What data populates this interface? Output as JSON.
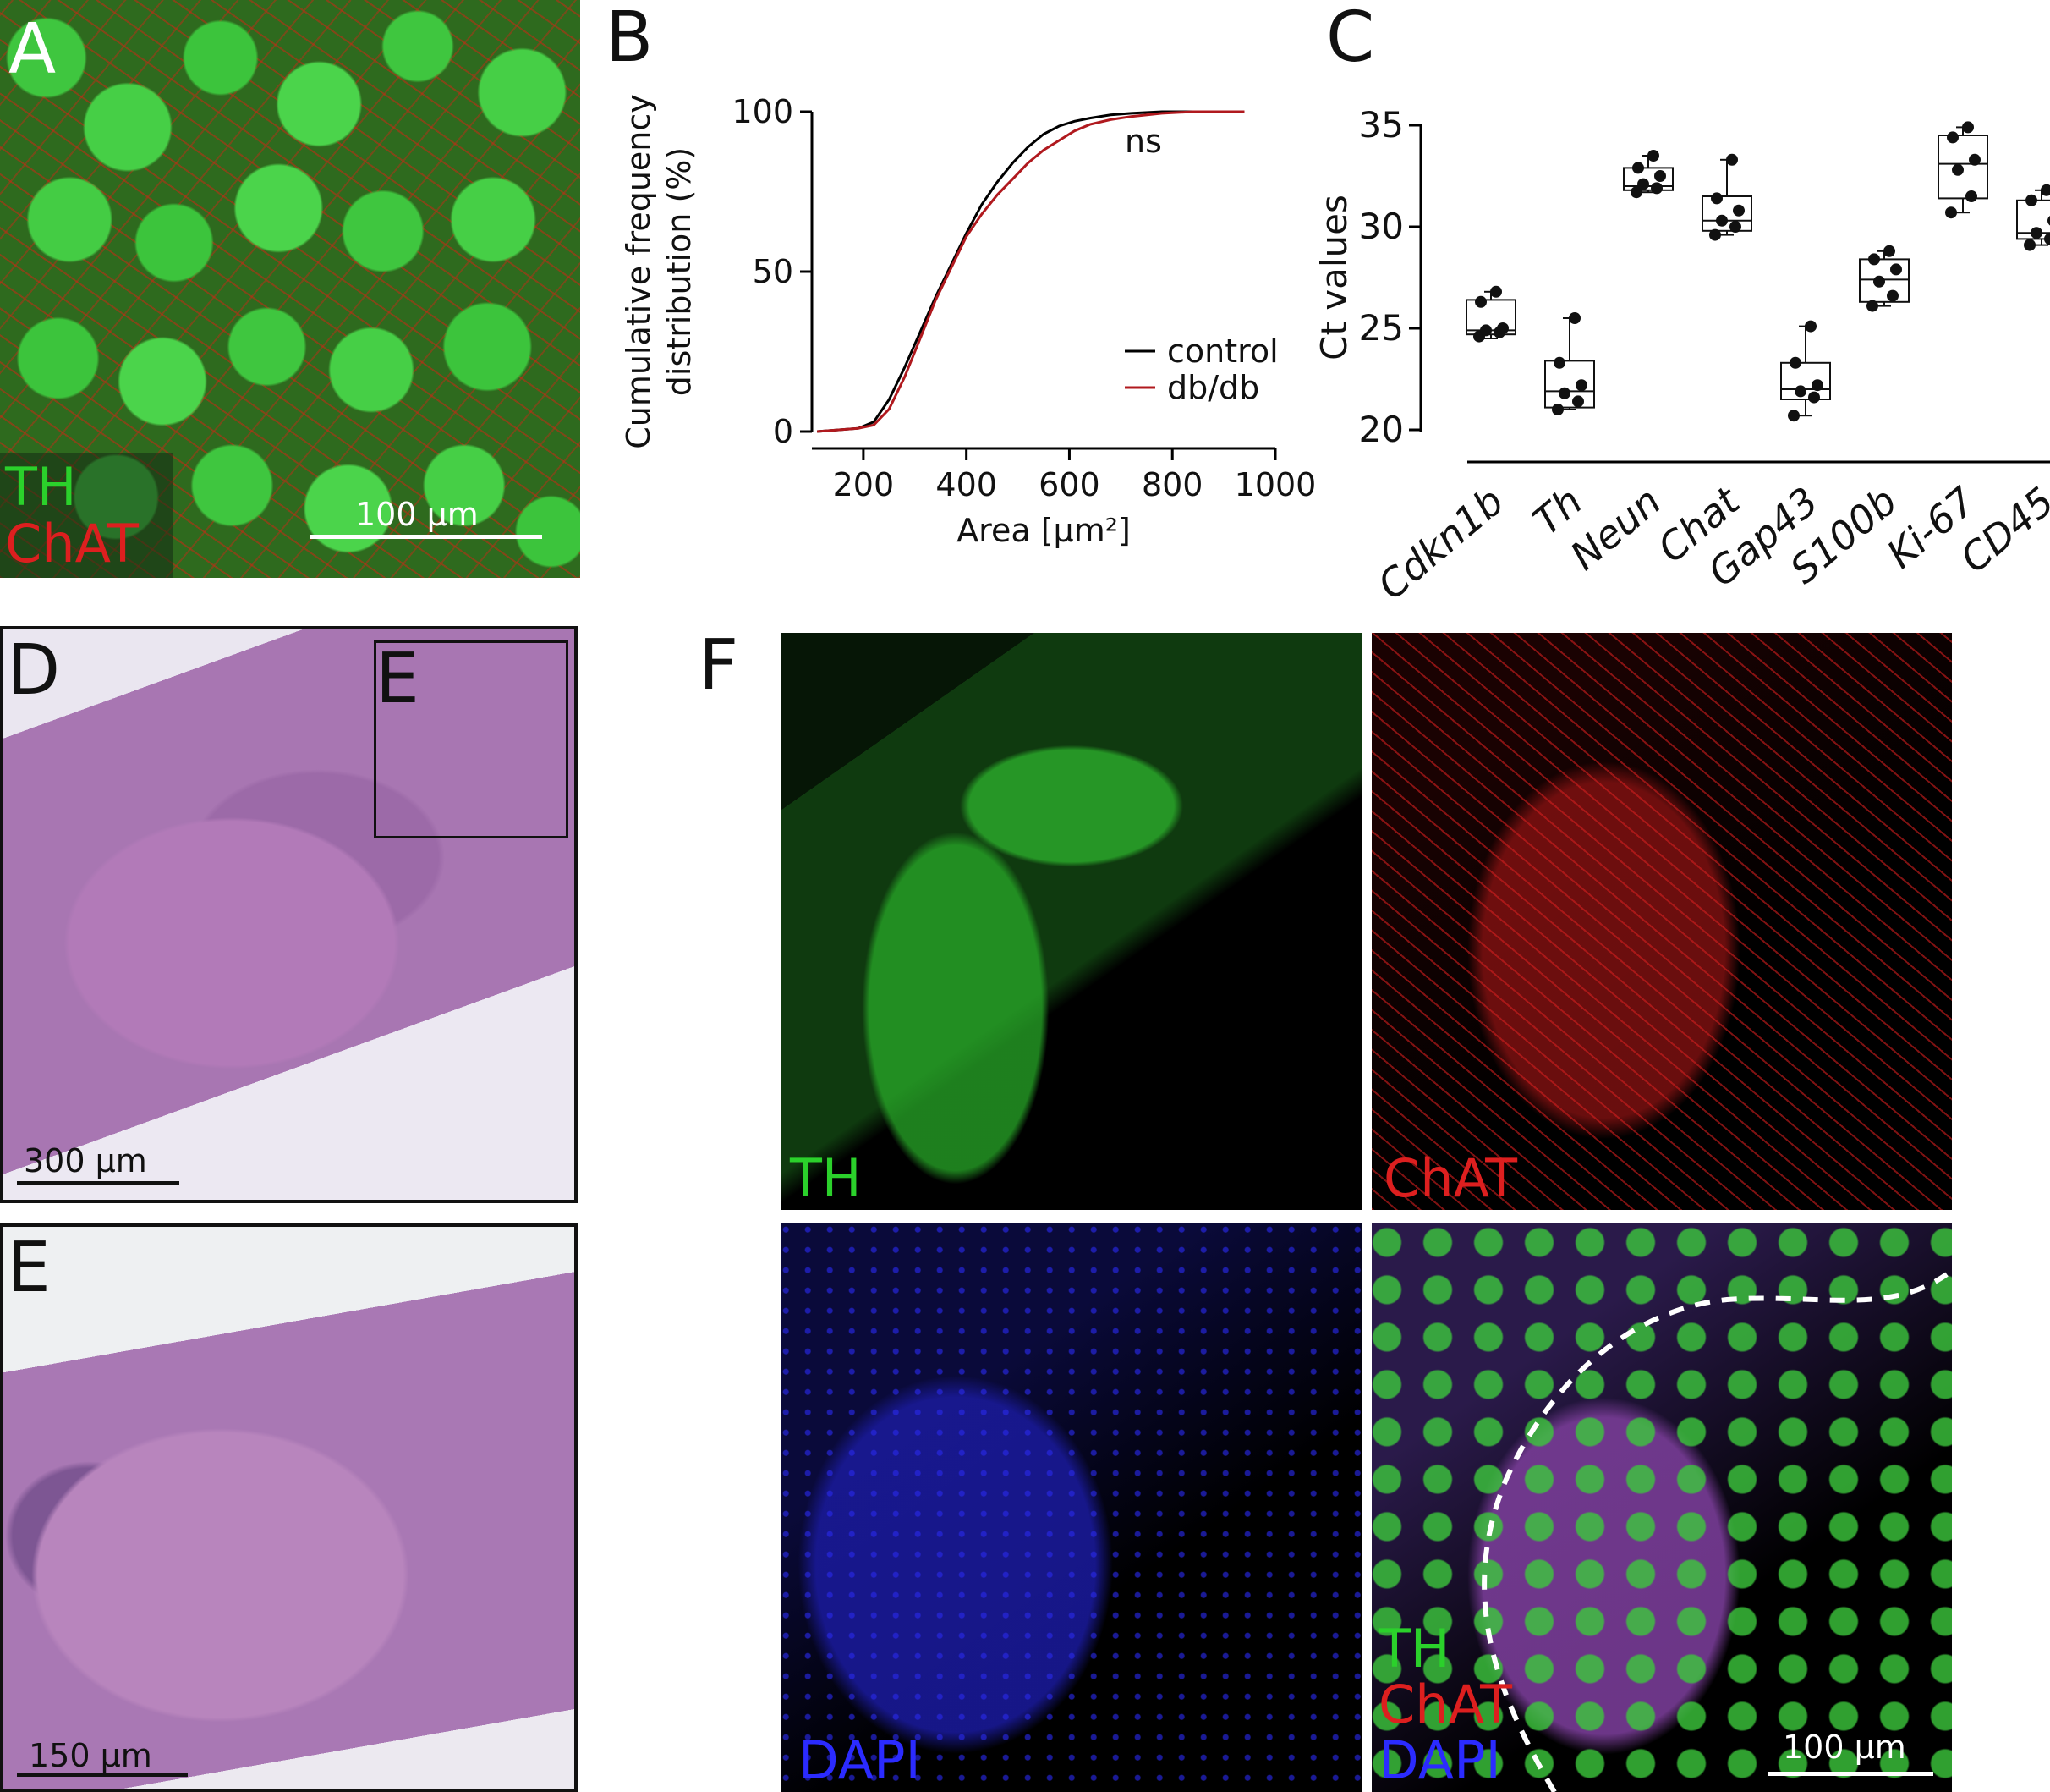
{
  "panels": {
    "A": {
      "letter": "A",
      "ch1": "TH",
      "ch2": "ChAT",
      "scale": "100 µm"
    },
    "B": {
      "letter": "B"
    },
    "C": {
      "letter": "C"
    },
    "D": {
      "letter": "D",
      "inset_label": "E",
      "scale": "300 µm"
    },
    "E": {
      "letter": "E",
      "scale": "150 µm"
    },
    "F": {
      "letter": "F",
      "tl": "TH",
      "tr": "ChAT",
      "bl": "DAPI",
      "br_1": "TH",
      "br_2": "ChAT",
      "br_3": "DAPI",
      "scale": "100 µm"
    }
  },
  "colors": {
    "green": "#2bd12b",
    "red": "#dd1f1f",
    "blue": "#2b2bff",
    "control": "#000000",
    "dbdb": "#b0191e"
  },
  "chart_data": [
    {
      "type": "line",
      "panel": "B",
      "ylabel": "Cumulative frequency distribution (%)",
      "xlabel": "Area [µm²]",
      "xlim": [
        100,
        1000
      ],
      "ylim": [
        0,
        100
      ],
      "xticks": [
        200,
        400,
        600,
        800,
        1000
      ],
      "yticks": [
        0,
        50,
        100
      ],
      "annotation": "ns",
      "legend": "right",
      "series": [
        {
          "name": "control",
          "color": "#000000",
          "x": [
            110,
            150,
            190,
            220,
            250,
            280,
            310,
            340,
            370,
            400,
            430,
            460,
            490,
            520,
            550,
            580,
            610,
            640,
            680,
            720,
            780,
            840,
            900,
            940
          ],
          "y": [
            0,
            0.5,
            1,
            3,
            10,
            20,
            31,
            42,
            52,
            62,
            71,
            78,
            84,
            89,
            93,
            95.5,
            97,
            98,
            99,
            99.5,
            100,
            100,
            100,
            100
          ]
        },
        {
          "name": "db/db",
          "color": "#b0191e",
          "x": [
            110,
            150,
            190,
            220,
            250,
            280,
            310,
            340,
            370,
            400,
            430,
            460,
            490,
            520,
            550,
            580,
            610,
            640,
            680,
            720,
            780,
            840,
            900,
            940
          ],
          "y": [
            0,
            0.5,
            1,
            2,
            7,
            17,
            29,
            41,
            51,
            61,
            68,
            74,
            79,
            84,
            88,
            91,
            94,
            96,
            97.5,
            98.5,
            99.5,
            100,
            100,
            100
          ]
        }
      ]
    },
    {
      "type": "box",
      "panel": "C",
      "ylabel": "Ct values",
      "ylim": [
        20,
        35
      ],
      "yticks": [
        20,
        25,
        30,
        35
      ],
      "categories": [
        "Cdkn1b",
        "Th",
        "Neun",
        "Chat",
        "Gap43",
        "S100b",
        "Ki-67",
        "CD45"
      ],
      "boxes": [
        {
          "q1": 24.7,
          "median": 24.9,
          "q3": 26.4,
          "min": 24.5,
          "max": 26.8,
          "points": [
            24.6,
            24.8,
            24.9,
            25.0,
            26.3,
            26.8
          ]
        },
        {
          "q1": 21.1,
          "median": 21.9,
          "q3": 23.4,
          "min": 21.0,
          "max": 25.5,
          "points": [
            21.0,
            21.4,
            21.8,
            22.2,
            23.3,
            25.5
          ]
        },
        {
          "q1": 31.8,
          "median": 32.0,
          "q3": 32.9,
          "min": 31.7,
          "max": 33.5,
          "points": [
            31.7,
            31.9,
            32.1,
            32.5,
            32.9,
            33.5
          ]
        },
        {
          "q1": 29.8,
          "median": 30.3,
          "q3": 31.5,
          "min": 29.6,
          "max": 33.3,
          "points": [
            29.6,
            30.0,
            30.3,
            30.8,
            31.4,
            33.3
          ]
        },
        {
          "q1": 21.5,
          "median": 22.0,
          "q3": 23.3,
          "min": 20.7,
          "max": 25.1,
          "points": [
            20.7,
            21.6,
            21.9,
            22.2,
            23.3,
            25.1
          ]
        },
        {
          "q1": 26.3,
          "median": 27.4,
          "q3": 28.4,
          "min": 26.1,
          "max": 28.8,
          "points": [
            26.1,
            26.6,
            27.3,
            27.9,
            28.4,
            28.8
          ]
        },
        {
          "q1": 31.4,
          "median": 33.1,
          "q3": 34.5,
          "min": 30.7,
          "max": 34.9,
          "points": [
            30.7,
            31.5,
            32.8,
            33.3,
            34.4,
            34.9
          ]
        },
        {
          "q1": 29.4,
          "median": 29.7,
          "q3": 31.3,
          "min": 29.1,
          "max": 31.8,
          "points": [
            29.1,
            29.4,
            29.7,
            30.3,
            31.3,
            31.8
          ]
        }
      ]
    }
  ]
}
